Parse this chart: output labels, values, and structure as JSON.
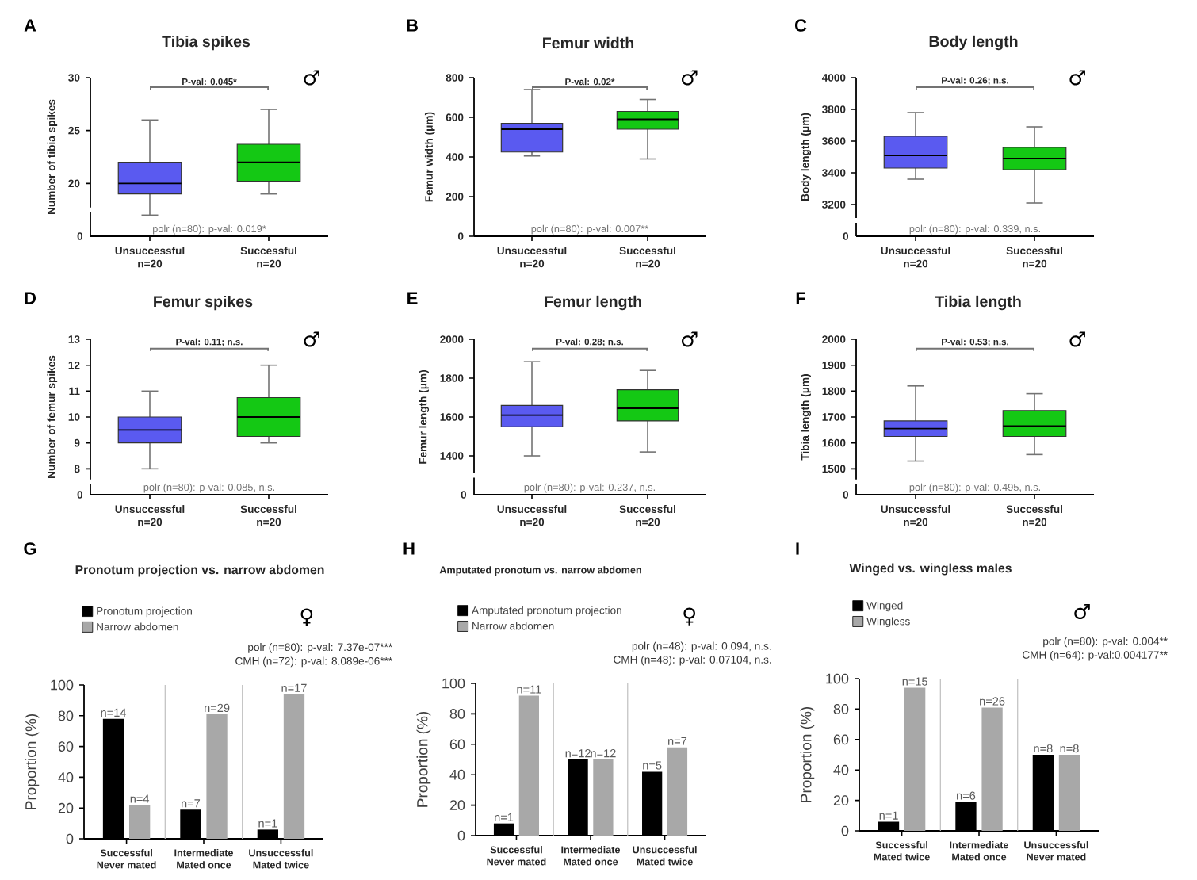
{
  "chart_data": [
    {
      "type": "box",
      "title": "Tibia spikes",
      "ylabel": "Number of tibia spikes",
      "categories": [
        "Unsuccessful\nn=20",
        "Successful\nn=20"
      ],
      "colors": [
        "#5a5af0",
        "#14c814"
      ],
      "boxes": [
        {
          "low": 17,
          "q1": 19,
          "median": 20,
          "q3": 22,
          "high": 26
        },
        {
          "low": 19,
          "q1": 20.2,
          "median": 22,
          "q3": 23.7,
          "high": 27
        }
      ],
      "ylim": [
        15,
        30
      ],
      "yticks": [
        20,
        25,
        30
      ],
      "annotations": [
        "A",
        "P-val: 0.045*",
        "polr (n=80): p-val: 0.019*",
        "♂",
        "0"
      ]
    },
    {
      "type": "box",
      "title": "Femur width",
      "ylabel": "Femur width (μm)",
      "categories": [
        "Unsuccessful\nn=20",
        "Successful\nn=20"
      ],
      "colors": [
        "#5a5af0",
        "#14c814"
      ],
      "boxes": [
        {
          "low": 405,
          "q1": 425,
          "median": 540,
          "q3": 570,
          "high": 740
        },
        {
          "low": 390,
          "q1": 540,
          "median": 590,
          "q3": 630,
          "high": 690
        }
      ],
      "ylim": [
        0,
        800
      ],
      "yticks": [
        0,
        200,
        400,
        600,
        800
      ],
      "annotations": [
        "B",
        "P-val: 0.02*",
        "polr (n=80): p-val: 0.007**",
        "♂"
      ]
    },
    {
      "type": "box",
      "title": "Body length",
      "ylabel": "Body length (μm)",
      "categories": [
        "Unsuccessful\nn=20",
        "Successful\nn=20"
      ],
      "colors": [
        "#5a5af0",
        "#14c814"
      ],
      "boxes": [
        {
          "low": 3360,
          "q1": 3430,
          "median": 3510,
          "q3": 3630,
          "high": 3780
        },
        {
          "low": 3210,
          "q1": 3420,
          "median": 3490,
          "q3": 3560,
          "high": 3690
        }
      ],
      "ylim": [
        3000,
        4000
      ],
      "yticks": [
        3200,
        3400,
        3600,
        3800,
        4000
      ],
      "annotations": [
        "C",
        "P-val: 0.26; n.s.",
        "polr (n=80): p-val: 0.339, n.s.",
        "♂",
        "0"
      ]
    },
    {
      "type": "box",
      "title": "Femur spikes",
      "ylabel": "Number of femur spikes",
      "categories": [
        "Unsuccessful\nn=20",
        "Successful\nn=20"
      ],
      "colors": [
        "#5a5af0",
        "#14c814"
      ],
      "boxes": [
        {
          "low": 8,
          "q1": 9,
          "median": 9.5,
          "q3": 10,
          "high": 11
        },
        {
          "low": 9,
          "q1": 9.25,
          "median": 10,
          "q3": 10.75,
          "high": 12
        }
      ],
      "ylim": [
        7,
        13
      ],
      "yticks": [
        8,
        9,
        10,
        11,
        12,
        13
      ],
      "annotations": [
        "D",
        "P-val: 0.11; n.s.",
        "polr (n=80): p-val: 0.085, n.s.",
        "♂",
        "0"
      ]
    },
    {
      "type": "box",
      "title": "Femur length",
      "ylabel": "Femur length (μm)",
      "categories": [
        "Unsuccessful\nn=20",
        "Successful\nn=20"
      ],
      "colors": [
        "#5a5af0",
        "#14c814"
      ],
      "boxes": [
        {
          "low": 1400,
          "q1": 1550,
          "median": 1610,
          "q3": 1660,
          "high": 1885
        },
        {
          "low": 1420,
          "q1": 1580,
          "median": 1645,
          "q3": 1740,
          "high": 1840
        }
      ],
      "ylim": [
        1200,
        2000
      ],
      "yticks": [
        1400,
        1600,
        1800,
        2000
      ],
      "annotations": [
        "E",
        "P-val: 0.28; n.s.",
        "polr (n=80): p-val: 0.237, n.s.",
        "♂",
        "0"
      ]
    },
    {
      "type": "box",
      "title": "Tibia length",
      "ylabel": "Tibia length (μm)",
      "categories": [
        "Unsuccessful\nn=20",
        "Successful\nn=20"
      ],
      "colors": [
        "#5a5af0",
        "#14c814"
      ],
      "boxes": [
        {
          "low": 1530,
          "q1": 1625,
          "median": 1655,
          "q3": 1685,
          "high": 1820
        },
        {
          "low": 1555,
          "q1": 1625,
          "median": 1665,
          "q3": 1725,
          "high": 1790
        }
      ],
      "ylim": [
        1400,
        2000
      ],
      "yticks": [
        1500,
        1600,
        1700,
        1800,
        1900,
        2000
      ],
      "annotations": [
        "F",
        "P-val: 0.53; n.s.",
        "polr (n=80): p-val: 0.495, n.s.",
        "♂",
        "0"
      ]
    },
    {
      "type": "bar",
      "title": "Pronotum projection vs. narrow abdomen",
      "ylabel": "Proportion (%)",
      "categories": [
        "Successful\nNever mated",
        "Intermediate\nMated once",
        "Unsuccessful\nMated twice"
      ],
      "series": [
        {
          "name": "Pronotum projection",
          "color": "#000000",
          "values": [
            78,
            19,
            6
          ]
        },
        {
          "name": "Narrow abdomen",
          "color": "#a8a8a8",
          "values": [
            22,
            81,
            94
          ]
        }
      ],
      "ylim": [
        0,
        100
      ],
      "yticks": [
        0,
        20,
        40,
        60,
        80,
        100
      ],
      "legend": "top left",
      "annotations": [
        "G",
        "♀",
        "polr (n=80): p-val: 7.37e-07***",
        "CMH (n=72): p-val: 8.089e-06***",
        {
          "text": "n=14",
          "x": "Successful\nNever mated",
          "y": 78
        },
        {
          "text": "n=7",
          "x": "Intermediate\nMated once",
          "y": 19
        },
        {
          "text": "n=1",
          "x": "Unsuccessful\nMated twice",
          "y": 6
        },
        {
          "text": "n=4",
          "x": "Successful\nNever mated",
          "y": 22
        },
        {
          "text": "n=29",
          "x": "Intermediate\nMated once",
          "y": 81
        },
        {
          "text": "n=17",
          "x": "Unsuccessful\nMated twice",
          "y": 94
        }
      ]
    },
    {
      "type": "bar",
      "title": "Amputated pronotum vs. narrow abdomen",
      "ylabel": "Proportion (%)",
      "categories": [
        "Successful\nNever mated",
        "Intermediate\nMated once",
        "Unsuccessful\nMated twice"
      ],
      "series": [
        {
          "name": "Amputated pronotum projection",
          "color": "#000000",
          "values": [
            8,
            50,
            42
          ]
        },
        {
          "name": "Narrow abdomen",
          "color": "#a8a8a8",
          "values": [
            92,
            50,
            58
          ]
        }
      ],
      "ylim": [
        0,
        100
      ],
      "yticks": [
        0,
        20,
        40,
        60,
        80,
        100
      ],
      "legend": "top left",
      "annotations": [
        "H",
        "♀",
        "polr (n=48): p-val: 0.094, n.s.",
        "CMH (n=48): p-val: 0.07104, n.s.",
        {
          "text": "n=1",
          "x": "Successful\nNever mated",
          "y": 8
        },
        {
          "text": "n=12",
          "x": "Intermediate\nMated once",
          "y": 50
        },
        {
          "text": "n=5",
          "x": "Unsuccessful\nMated twice",
          "y": 42
        },
        {
          "text": "n=11",
          "x": "Successful\nNever mated",
          "y": 92
        },
        {
          "text": "n=12",
          "x": "Intermediate\nMated once",
          "y": 50
        },
        {
          "text": "n=7",
          "x": "Unsuccessful\nMated twice",
          "y": 58
        }
      ]
    },
    {
      "type": "bar",
      "title": "Winged vs. wingless males",
      "ylabel": "Proportion (%)",
      "categories": [
        "Successful\nMated twice",
        "Intermediate\nMated once",
        "Unsuccessful\nNever mated"
      ],
      "series": [
        {
          "name": "Winged",
          "color": "#000000",
          "values": [
            6,
            19,
            50
          ]
        },
        {
          "name": "Wingless",
          "color": "#a8a8a8",
          "values": [
            94,
            81,
            50
          ]
        }
      ],
      "ylim": [
        0,
        100
      ],
      "yticks": [
        0,
        20,
        40,
        60,
        80,
        100
      ],
      "legend": "top left",
      "annotations": [
        "I",
        "♂",
        "polr (n=80): p-val: 0.004**",
        "CMH (n=64): p-val:0.004177**",
        {
          "text": "n=1",
          "x": "Successful\nMated twice",
          "y": 6
        },
        {
          "text": "n=6",
          "x": "Intermediate\nMated once",
          "y": 19
        },
        {
          "text": "n=8",
          "x": "Unsuccessful\nNever mated",
          "y": 50
        },
        {
          "text": "n=15",
          "x": "Successful\nMated twice",
          "y": 94
        },
        {
          "text": "n=26",
          "x": "Intermediate\nMated once",
          "y": 81
        },
        {
          "text": "n=8",
          "x": "Unsuccessful\nNever mated",
          "y": 50
        }
      ]
    }
  ]
}
